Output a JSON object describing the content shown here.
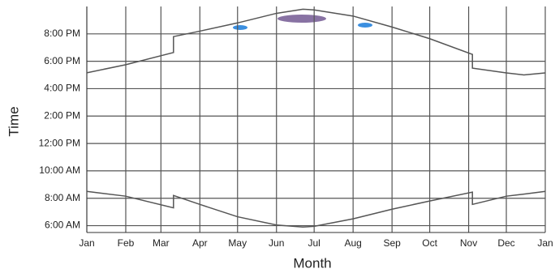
{
  "chart_data": {
    "type": "line",
    "x_label": "Month",
    "y_label": "Time",
    "x": [
      0,
      31,
      69,
      69,
      90,
      120,
      151,
      172,
      181,
      212,
      243,
      273,
      307,
      307,
      334,
      348,
      365
    ],
    "series": [
      {
        "color": "#555555",
        "values": [
          17.16,
          17.75,
          18.64,
          19.8,
          20.2,
          20.8,
          21.5,
          21.8,
          21.75,
          21.3,
          20.5,
          19.65,
          18.5,
          17.5,
          17.15,
          17.0,
          17.15
        ]
      },
      {
        "color": "#555555",
        "values": [
          8.5,
          8.15,
          7.3,
          8.2,
          7.55,
          6.65,
          6.05,
          5.9,
          5.95,
          6.5,
          7.2,
          7.8,
          8.45,
          7.55,
          8.15,
          8.3,
          8.5
        ]
      }
    ],
    "xlim": [
      0,
      365
    ],
    "xticks": [
      {
        "value": 0,
        "label": "Jan"
      },
      {
        "value": 31,
        "label": "Feb"
      },
      {
        "value": 59,
        "label": "Mar"
      },
      {
        "value": 90,
        "label": "Apr"
      },
      {
        "value": 120,
        "label": "May"
      },
      {
        "value": 151,
        "label": "Jun"
      },
      {
        "value": 181,
        "label": "Jul"
      },
      {
        "value": 212,
        "label": "Aug"
      },
      {
        "value": 243,
        "label": "Sep"
      },
      {
        "value": 273,
        "label": "Oct"
      },
      {
        "value": 304,
        "label": "Nov"
      },
      {
        "value": 334,
        "label": "Dec"
      },
      {
        "value": 365,
        "label": "Jan"
      }
    ],
    "ylim": [
      5.5,
      22
    ],
    "yticks": [
      {
        "value": 6,
        "label": "6:00 AM"
      },
      {
        "value": 8,
        "label": "8:00 AM"
      },
      {
        "value": 10,
        "label": "10:00 AM"
      },
      {
        "value": 12,
        "label": "12:00 PM"
      },
      {
        "value": 14,
        "label": "2:00 PM"
      },
      {
        "value": 16,
        "label": "4:00 PM"
      },
      {
        "value": 18,
        "label": "6:00 PM"
      },
      {
        "value": 20,
        "label": "8:00 PM"
      }
    ],
    "grid": true
  }
}
